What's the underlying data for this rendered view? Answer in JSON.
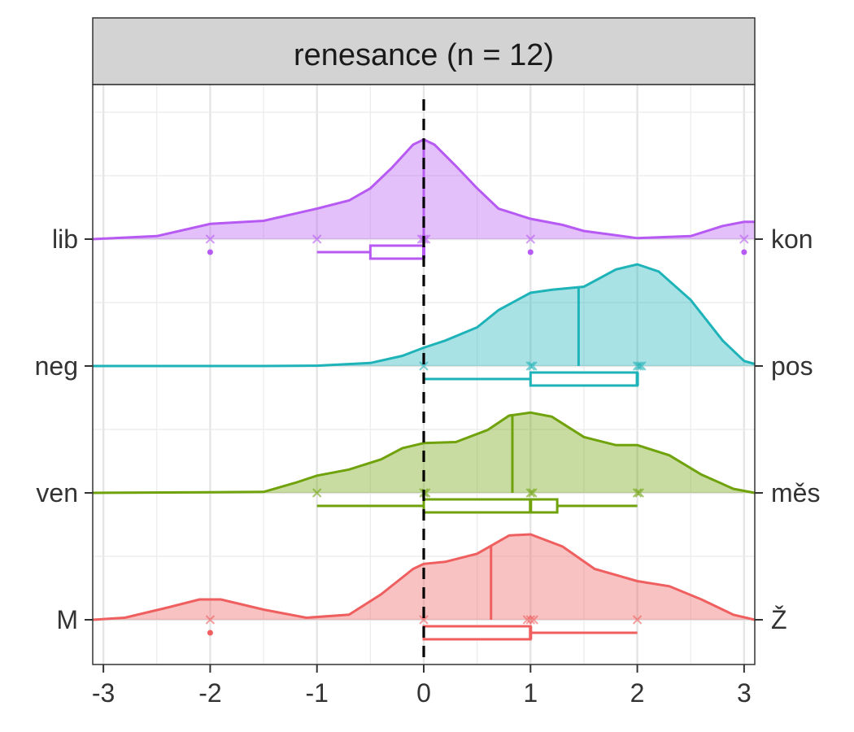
{
  "chart_data": {
    "type": "ridgeline",
    "facet_title": "renesance (n = 12)",
    "xlim": [
      -3.1,
      3.1
    ],
    "x_ticks": [
      -3,
      -2,
      -1,
      0,
      1,
      2,
      3
    ],
    "x_tick_labels": [
      "-3",
      "-2",
      "-1",
      "0",
      "1",
      "2",
      "3"
    ],
    "reference_line_x": 0,
    "grid": true,
    "legend": "none",
    "series": [
      {
        "left_label": "lib",
        "right_label": "kon",
        "color": "#B75AF3",
        "density_x": [
          -3.1,
          -3.0,
          -2.5,
          -2.0,
          -1.5,
          -1.0,
          -0.7,
          -0.5,
          -0.3,
          -0.1,
          0.0,
          0.1,
          0.3,
          0.5,
          0.7,
          1.0,
          1.3,
          1.5,
          2.0,
          2.5,
          2.8,
          3.0,
          3.1
        ],
        "density_y": [
          0.0,
          0.005,
          0.03,
          0.15,
          0.18,
          0.3,
          0.38,
          0.5,
          0.7,
          0.93,
          0.98,
          0.93,
          0.72,
          0.5,
          0.3,
          0.2,
          0.14,
          0.08,
          0.01,
          0.03,
          0.13,
          0.17,
          0.17
        ],
        "density_max": 1.0,
        "mean": 0.0,
        "points": [
          -2,
          -1,
          -0.02,
          0,
          0.02,
          1,
          3
        ],
        "box": {
          "whisker_low": -1,
          "q1": -0.5,
          "median": 0,
          "q3": 0,
          "whisker_high": 0
        },
        "outliers": [
          -2,
          1,
          3
        ]
      },
      {
        "left_label": "neg",
        "right_label": "pos",
        "color": "#1EB3B8",
        "density_x": [
          -3.1,
          -1.5,
          -1.0,
          -0.5,
          -0.2,
          0.0,
          0.2,
          0.5,
          0.7,
          1.0,
          1.2,
          1.5,
          1.8,
          2.0,
          2.2,
          2.5,
          2.8,
          3.0,
          3.1
        ],
        "density_y": [
          0.0,
          0.0,
          0.003,
          0.03,
          0.1,
          0.18,
          0.25,
          0.38,
          0.55,
          0.72,
          0.75,
          0.78,
          0.95,
          1.0,
          0.93,
          0.65,
          0.25,
          0.05,
          0.02
        ],
        "density_max": 1.0,
        "mean": 1.45,
        "points": [
          0,
          1,
          1.02,
          2,
          2.02,
          2.04
        ],
        "box": {
          "whisker_low": 0,
          "q1": 1,
          "median": 2,
          "q3": 2,
          "whisker_high": 2
        },
        "outliers": []
      },
      {
        "left_label": "ven",
        "right_label": "měs",
        "color": "#6FA20B",
        "density_x": [
          -3.1,
          -1.5,
          -1.2,
          -1.0,
          -0.7,
          -0.4,
          -0.2,
          0.0,
          0.3,
          0.6,
          0.8,
          1.0,
          1.2,
          1.5,
          1.8,
          2.0,
          2.3,
          2.6,
          2.9,
          3.1
        ],
        "density_y": [
          0.0,
          0.01,
          0.1,
          0.17,
          0.23,
          0.33,
          0.44,
          0.49,
          0.5,
          0.62,
          0.76,
          0.79,
          0.75,
          0.55,
          0.47,
          0.47,
          0.37,
          0.18,
          0.04,
          0.0
        ],
        "density_max": 0.8,
        "mean": 0.83,
        "points": [
          -1,
          0,
          0.02,
          1,
          1.02,
          2,
          2.02
        ],
        "box": {
          "whisker_low": -1,
          "q1": 0,
          "median": 1,
          "q3": 1.25,
          "whisker_high": 2
        },
        "outliers": []
      },
      {
        "left_label": "M",
        "right_label": "Ž",
        "color": "#EF5F5F",
        "density_x": [
          -3.1,
          -2.8,
          -2.4,
          -2.1,
          -1.9,
          -1.5,
          -1.1,
          -0.7,
          -0.4,
          -0.1,
          0.0,
          0.2,
          0.5,
          0.8,
          1.0,
          1.3,
          1.6,
          2.0,
          2.3,
          2.6,
          2.9,
          3.1
        ],
        "density_y": [
          0.0,
          0.02,
          0.12,
          0.2,
          0.2,
          0.1,
          0.02,
          0.05,
          0.25,
          0.5,
          0.55,
          0.57,
          0.65,
          0.83,
          0.84,
          0.72,
          0.5,
          0.38,
          0.33,
          0.2,
          0.05,
          0.0
        ],
        "density_max": 0.84,
        "mean": 0.63,
        "points": [
          -2,
          0,
          0.97,
          1,
          1.03,
          2
        ],
        "box": {
          "whisker_low": 0,
          "q1": 0,
          "median": 1,
          "q3": 1,
          "whisker_high": 2
        },
        "outliers": [
          -2
        ]
      }
    ]
  }
}
